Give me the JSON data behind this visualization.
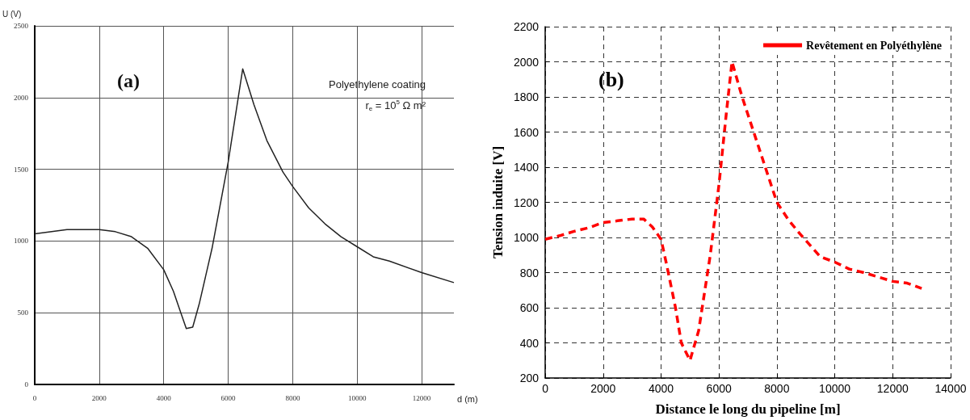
{
  "chart_data": [
    {
      "type": "line",
      "xlabel": "d (m)",
      "ylabel": "U (V)",
      "annotations": [
        "(a)",
        "Polyethylene coating",
        "r$_{e}$ = 10$^{5}$ Ω m²"
      ],
      "xlim": [
        0,
        13000
      ],
      "xticks": [
        0,
        2000,
        4000,
        6000,
        8000,
        10000,
        12000
      ],
      "ylim": [
        0,
        2500
      ],
      "yticks": [
        0,
        500,
        1000,
        1500,
        2000,
        2500
      ],
      "grid": true,
      "legend": false,
      "marker": "none",
      "series": [
        {
          "color": "#222222",
          "line_style": "solid",
          "x": [
            0,
            1000,
            2000,
            2500,
            3000,
            3500,
            4000,
            4300,
            4500,
            4700,
            4900,
            5100,
            5500,
            6000,
            6450,
            6800,
            7200,
            7700,
            8000,
            8500,
            9000,
            9500,
            10000,
            10500,
            11000,
            12000,
            13000
          ],
          "values": [
            1050,
            1080,
            1080,
            1065,
            1030,
            950,
            800,
            650,
            520,
            390,
            400,
            560,
            950,
            1550,
            2200,
            1950,
            1700,
            1480,
            1380,
            1230,
            1120,
            1030,
            960,
            890,
            860,
            780,
            710
          ]
        }
      ]
    },
    {
      "type": "line",
      "xlabel": "Distance le long du pipeline [m]",
      "ylabel": "Tension induite [V]",
      "annotations": [
        "(b)"
      ],
      "xlim": [
        0,
        14000
      ],
      "xticks": [
        0,
        2000,
        4000,
        6000,
        8000,
        10000,
        12000,
        14000
      ],
      "ylim": [
        200,
        2200
      ],
      "yticks": [
        200,
        400,
        600,
        800,
        1000,
        1200,
        1400,
        1600,
        1800,
        2000,
        2200
      ],
      "grid": true,
      "legend": "top right",
      "marker": "none",
      "series": [
        {
          "name": "Revêtement en Polyéthylène",
          "color": "#ff0000",
          "line_style": "dashed",
          "x": [
            0,
            500,
            1000,
            1500,
            2000,
            2500,
            3000,
            3400,
            3700,
            4000,
            4200,
            4500,
            4700,
            5000,
            5300,
            5700,
            6000,
            6250,
            6450,
            6800,
            7200,
            7600,
            7800,
            8000,
            8400,
            8800,
            9500,
            10000,
            10500,
            11000,
            12000,
            12500,
            13000
          ],
          "values": [
            990,
            1010,
            1035,
            1055,
            1085,
            1095,
            1105,
            1105,
            1060,
            990,
            840,
            600,
            400,
            300,
            470,
            900,
            1300,
            1700,
            2000,
            1800,
            1600,
            1400,
            1300,
            1200,
            1100,
            1020,
            890,
            860,
            820,
            800,
            750,
            740,
            710
          ]
        }
      ]
    }
  ]
}
